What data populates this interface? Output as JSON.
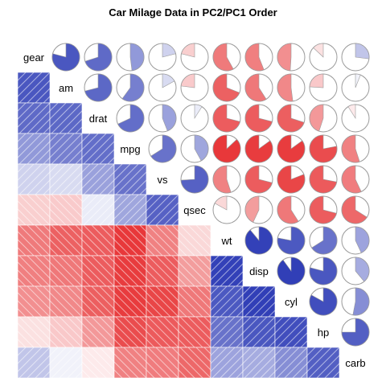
{
  "chart_data": {
    "type": "heatmap",
    "subtype": "corrgram",
    "title": "Car Milage Data in PC2/PC1 Order",
    "order": "PC2/PC1",
    "lower_panel": "shade",
    "upper_panel": "pie",
    "diag_panel": "variable names",
    "variables": [
      "gear",
      "am",
      "drat",
      "mpg",
      "vs",
      "qsec",
      "wt",
      "disp",
      "cyl",
      "hp",
      "carb"
    ],
    "color_scale": {
      "negative": "#E41A1C",
      "positive": "#1A2AAF",
      "neutral": "#FFFFFF",
      "range": [
        -1,
        1
      ]
    },
    "correlation_matrix": [
      [
        1.0,
        0.79,
        0.7,
        0.48,
        0.21,
        -0.21,
        -0.58,
        -0.56,
        -0.49,
        -0.13,
        0.27
      ],
      [
        0.79,
        1.0,
        0.71,
        0.6,
        0.17,
        -0.23,
        -0.69,
        -0.59,
        -0.52,
        -0.24,
        0.06
      ],
      [
        0.7,
        0.71,
        1.0,
        0.68,
        0.44,
        0.09,
        -0.71,
        -0.71,
        -0.7,
        -0.45,
        -0.09
      ],
      [
        0.48,
        0.6,
        0.68,
        1.0,
        0.66,
        0.42,
        -0.87,
        -0.85,
        -0.85,
        -0.78,
        -0.55
      ],
      [
        0.21,
        0.17,
        0.44,
        0.66,
        1.0,
        0.74,
        -0.55,
        -0.71,
        -0.81,
        -0.72,
        -0.57
      ],
      [
        -0.21,
        -0.23,
        0.09,
        0.42,
        0.74,
        1.0,
        -0.17,
        -0.43,
        -0.59,
        -0.71,
        -0.66
      ],
      [
        -0.58,
        -0.69,
        -0.71,
        -0.87,
        -0.55,
        -0.17,
        1.0,
        0.89,
        0.78,
        0.66,
        0.43
      ],
      [
        -0.56,
        -0.59,
        -0.71,
        -0.85,
        -0.71,
        -0.43,
        0.89,
        1.0,
        0.9,
        0.79,
        0.39
      ],
      [
        -0.49,
        -0.52,
        -0.7,
        -0.85,
        -0.81,
        -0.59,
        0.78,
        0.9,
        1.0,
        0.83,
        0.53
      ],
      [
        -0.13,
        -0.24,
        -0.45,
        -0.78,
        -0.72,
        -0.71,
        0.66,
        0.79,
        0.83,
        1.0,
        0.75
      ],
      [
        0.27,
        0.06,
        -0.09,
        -0.55,
        -0.57,
        -0.66,
        0.43,
        0.39,
        0.53,
        0.75,
        1.0
      ]
    ]
  }
}
